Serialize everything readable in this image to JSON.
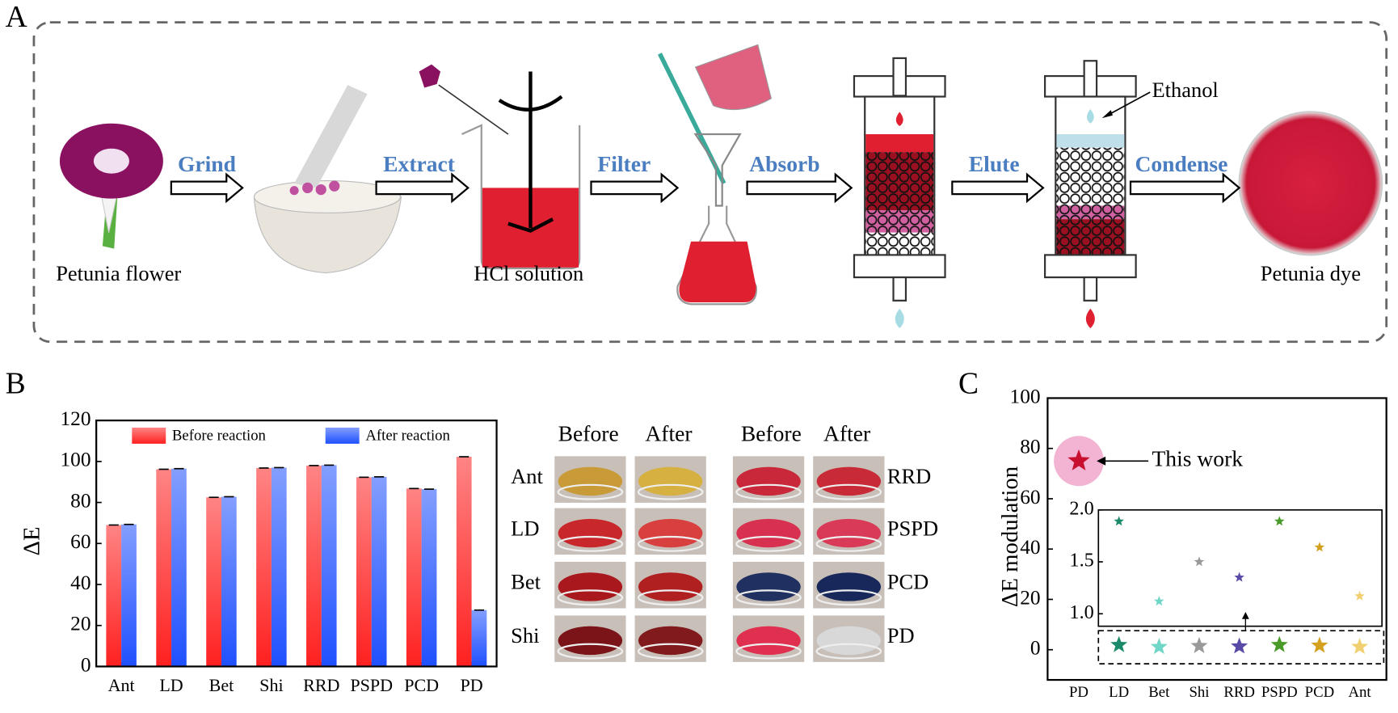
{
  "diagram": {
    "label": "A",
    "stages": [
      "Petunia flower",
      "HCl solution",
      "Petunia dye"
    ],
    "actions": [
      "Grind",
      "Extract",
      "Filter",
      "Absorb",
      "Elute",
      "Condense"
    ],
    "annotation": "Ethanol"
  },
  "chart_data": [
    {
      "label": "B",
      "type": "bar",
      "y_label": "ΔE",
      "categories": [
        "Ant",
        "LD",
        "Bet",
        "Shi",
        "RRD",
        "PSPD",
        "PCD",
        "PD"
      ],
      "series": [
        {
          "name": "Before reaction",
          "color": "#ff2020",
          "values": [
            69,
            96.2,
            82.5,
            96.8,
            98,
            92.3,
            86.8,
            102.3
          ]
        },
        {
          "name": "After reaction",
          "color": "#1f50ff",
          "values": [
            69.3,
            96.5,
            82.8,
            97,
            98.2,
            92.5,
            86.5,
            27.5
          ]
        }
      ],
      "ylim": [
        0,
        120
      ],
      "yticks": [
        0,
        20,
        40,
        60,
        80,
        100,
        120
      ]
    },
    {
      "label": "C",
      "type": "scatter",
      "y_label": "ΔE modulation",
      "categories": [
        "PD",
        "LD",
        "Bet",
        "Shi",
        "RRD",
        "PSPD",
        "PCD",
        "Ant"
      ],
      "values": [
        75,
        1.89,
        1.12,
        1.5,
        1.35,
        1.89,
        1.64,
        1.17
      ],
      "colors": [
        "#c8102e",
        "#1a8a6a",
        "#6fd6c8",
        "#999999",
        "#5a4aa8",
        "#4a9a2a",
        "#d4a020",
        "#f0d070"
      ],
      "ylim": [
        -12,
        100
      ],
      "yticks": [
        0,
        20,
        40,
        60,
        80,
        100
      ],
      "annotation": "This work",
      "inset": {
        "ylim": [
          0.88,
          2.0
        ],
        "yticks": [
          {
            "value": 1,
            "label": "1.0"
          },
          1.5,
          {
            "value": 2,
            "label": "2.0"
          }
        ]
      }
    }
  ],
  "photos": {
    "headers": [
      "Before",
      "After",
      "Before",
      "After"
    ],
    "rows": [
      {
        "left": "Ant",
        "right": "RRD",
        "colors": [
          "#c89a38",
          "#d6b040",
          "#c8283a",
          "#c82a38"
        ]
      },
      {
        "left": "LD",
        "right": "PSPD",
        "colors": [
          "#c8282c",
          "#d84040",
          "#d83050",
          "#d83a58"
        ]
      },
      {
        "left": "Bet",
        "right": "PCD",
        "colors": [
          "#a8181c",
          "#b02020",
          "#203060",
          "#18285a"
        ]
      },
      {
        "left": "Shi",
        "right": "PD",
        "colors": [
          "#7a1418",
          "#801a1c",
          "#e03050",
          "#d8d8d8"
        ]
      }
    ]
  }
}
